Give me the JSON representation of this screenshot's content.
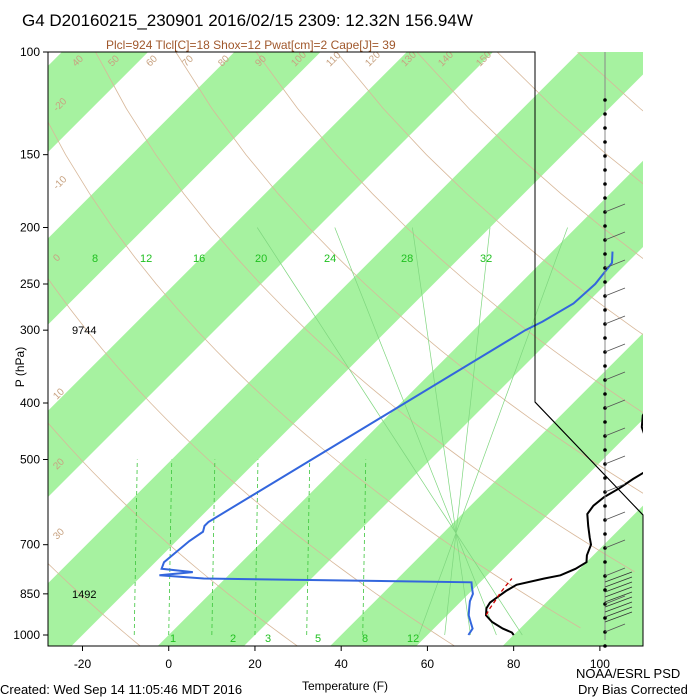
{
  "chart_data": {
    "type": "line",
    "title": "G4 D20160215_230901 2016/02/15 2309: 12.32N 156.94W",
    "subtitle": "Plcl=924 Tlcl[C]=18 Shox=12 Pwat[cm]=2 Cape[J]= 39",
    "xlabel": "Temperature (F)",
    "ylabel": "P (hPa)",
    "xlim": [
      -28,
      110
    ],
    "ylim": [
      1050,
      100
    ],
    "y_scale": "log",
    "x_ticks": [
      -20,
      0,
      20,
      40,
      60,
      80,
      100
    ],
    "y_ticks": [
      100,
      150,
      200,
      250,
      300,
      400,
      500,
      700,
      850,
      1000
    ],
    "height_labels": [
      {
        "pressure": 300,
        "label": "9744"
      },
      {
        "pressure": 850,
        "label": "1492"
      }
    ],
    "isotherm_labels": [
      "-20",
      "-10",
      "0",
      "10",
      "20",
      "30",
      "40",
      "50",
      "60",
      "70",
      "80",
      "90",
      "100",
      "110",
      "120",
      "130",
      "140",
      "150",
      "160"
    ],
    "mixing_ratio_labels": [
      "1",
      "2",
      "3",
      "5",
      "8",
      "12",
      "8",
      "12",
      "16",
      "20",
      "24",
      "28",
      "32"
    ],
    "series": [
      {
        "name": "Temperature",
        "color": "#000000",
        "points": [
          [
            1000,
            80
          ],
          [
            990,
            79
          ],
          [
            975,
            76
          ],
          [
            950,
            72
          ],
          [
            925,
            69
          ],
          [
            900,
            67.5
          ],
          [
            880,
            67
          ],
          [
            860,
            67.5
          ],
          [
            840,
            68
          ],
          [
            820,
            69
          ],
          [
            800,
            74
          ],
          [
            790,
            77
          ],
          [
            770,
            79
          ],
          [
            750,
            80
          ],
          [
            730,
            78.5
          ],
          [
            700,
            77
          ],
          [
            680,
            75
          ],
          [
            650,
            72
          ],
          [
            620,
            69
          ],
          [
            600,
            68.5
          ],
          [
            580,
            69
          ],
          [
            560,
            70.5
          ],
          [
            540,
            71.5
          ],
          [
            520,
            73
          ],
          [
            500,
            71
          ],
          [
            480,
            68.5
          ],
          [
            460,
            65
          ],
          [
            440,
            61.5
          ],
          [
            420,
            59
          ],
          [
            400,
            58
          ],
          [
            380,
            57
          ],
          [
            360,
            56.5
          ],
          [
            340,
            54
          ],
          [
            320,
            51
          ],
          [
            300,
            47
          ],
          [
            280,
            44.5
          ],
          [
            260,
            42
          ],
          [
            240,
            39.5
          ],
          [
            220,
            37.5
          ],
          [
            210,
            37
          ],
          [
            200,
            37
          ]
        ]
      },
      {
        "name": "Dewpoint",
        "color": "#3366dd",
        "points": [
          [
            1000,
            69.5
          ],
          [
            975,
            69
          ],
          [
            950,
            67
          ],
          [
            925,
            65
          ],
          [
            900,
            63.5
          ],
          [
            875,
            62
          ],
          [
            850,
            61
          ],
          [
            825,
            59
          ],
          [
            812,
            58
          ],
          [
            800,
            -5
          ],
          [
            790,
            -16
          ],
          [
            780,
            -9
          ],
          [
            770,
            -17
          ],
          [
            750,
            -18
          ],
          [
            690,
            -17
          ],
          [
            665,
            -16
          ],
          [
            650,
            -17
          ],
          [
            640,
            -17
          ],
          [
            300,
            12
          ],
          [
            290,
            14
          ],
          [
            270,
            17
          ],
          [
            250,
            17.5
          ],
          [
            230,
            16.5
          ],
          [
            220,
            14
          ]
        ]
      },
      {
        "name": "Parcel",
        "color": "#cc0000",
        "points": [
          [
            924,
            69
          ],
          [
            900,
            68.3
          ],
          [
            875,
            67.8
          ],
          [
            850,
            67.2
          ],
          [
            825,
            66.8
          ],
          [
            800,
            66.5
          ]
        ]
      }
    ]
  },
  "footer": {
    "created": "Created: Wed Sep 14 11:05:46 MDT 2016",
    "org": "NOAA/ESRL PSD",
    "note": "Dry Bias Corrected"
  }
}
